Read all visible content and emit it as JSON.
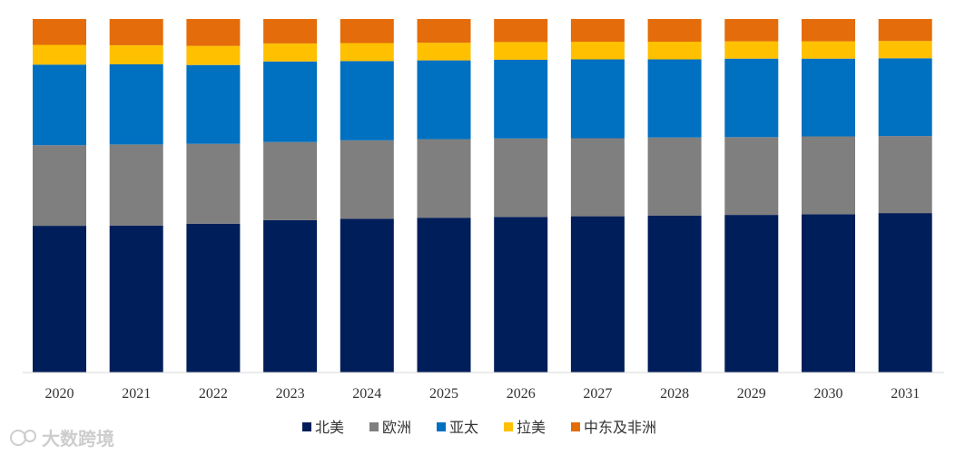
{
  "chart_data": {
    "type": "bar",
    "stacked": "percent",
    "categories": [
      "2020",
      "2021",
      "2022",
      "2023",
      "2024",
      "2025",
      "2026",
      "2027",
      "2028",
      "2029",
      "2030",
      "2031"
    ],
    "series": [
      {
        "name": "北美",
        "color": "#001E5A",
        "values": [
          41.5,
          41.6,
          42.1,
          43.1,
          43.5,
          43.8,
          44.0,
          44.2,
          44.4,
          44.6,
          44.8,
          45.1
        ]
      },
      {
        "name": "欧洲",
        "color": "#7F7F7F",
        "values": [
          22.8,
          22.9,
          22.6,
          22.1,
          22.2,
          22.2,
          22.2,
          22.1,
          22.1,
          22.0,
          22.0,
          21.8
        ]
      },
      {
        "name": "亚太",
        "color": "#0070C0",
        "values": [
          22.8,
          22.7,
          22.3,
          22.8,
          22.4,
          22.3,
          22.3,
          22.3,
          22.1,
          22.2,
          22.0,
          22.0
        ]
      },
      {
        "name": "拉美",
        "color": "#FFC000",
        "values": [
          5.6,
          5.4,
          5.4,
          5.1,
          5.1,
          5.0,
          5.0,
          5.0,
          5.0,
          4.9,
          4.9,
          4.9
        ]
      },
      {
        "name": "中东及非洲",
        "color": "#E46C0A",
        "values": [
          7.3,
          7.4,
          7.6,
          6.9,
          6.8,
          6.7,
          6.5,
          6.4,
          6.4,
          6.3,
          6.3,
          6.2
        ]
      }
    ],
    "ylim": [
      0,
      100
    ],
    "legend_position": "bottom",
    "grid": false
  },
  "watermark": {
    "text": "大数跨境"
  }
}
